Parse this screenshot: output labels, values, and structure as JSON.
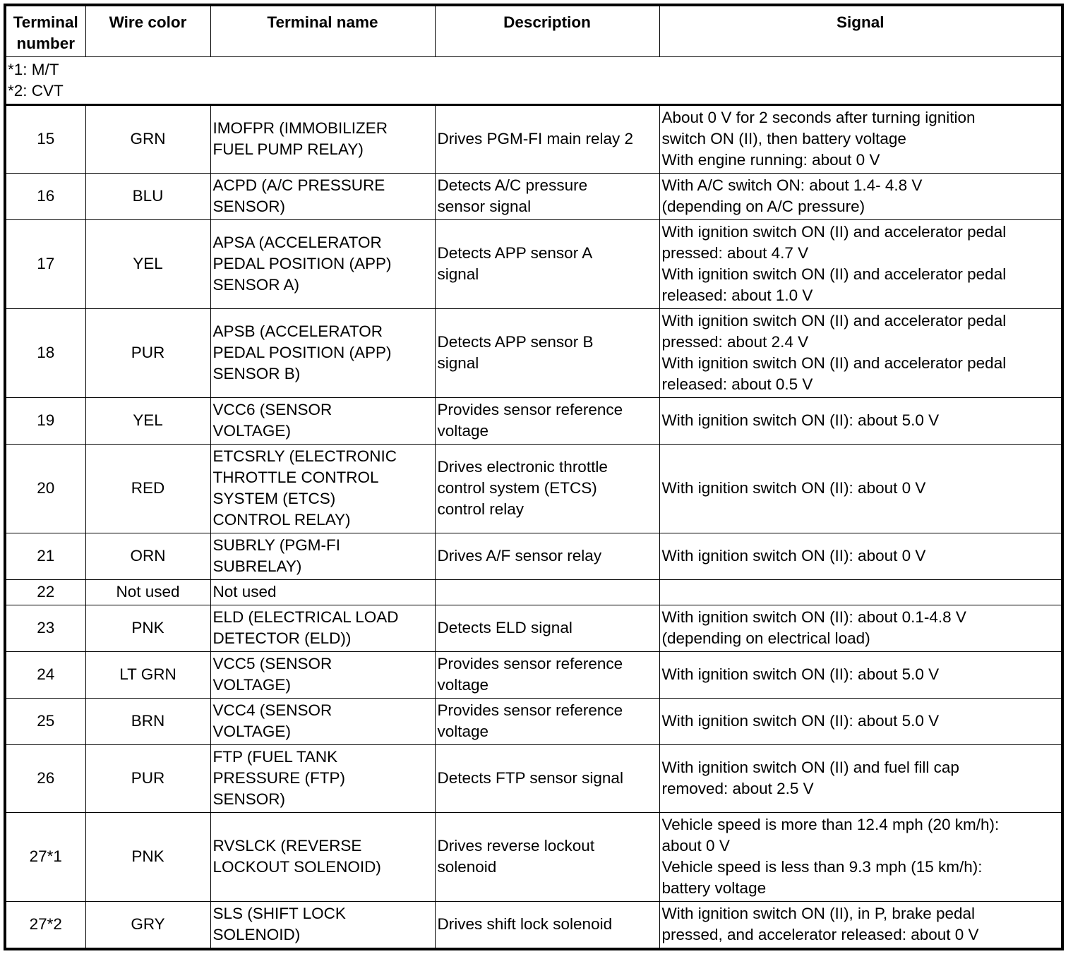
{
  "headers": [
    "Terminal\nnumber",
    "Wire color",
    "Terminal name",
    "Description",
    "Signal"
  ],
  "notes": "*1: M/T\n*2: CVT",
  "rows": [
    {
      "terminal": "15",
      "wire": "GRN",
      "name": "IMOFPR (IMMOBILIZER\nFUEL PUMP RELAY)",
      "description": "Drives PGM-FI main relay 2",
      "signal": "About 0 V for 2 seconds after turning ignition\nswitch ON (II), then battery voltage\nWith engine running: about 0 V"
    },
    {
      "terminal": "16",
      "wire": "BLU",
      "name": "ACPD (A/C PRESSURE\nSENSOR)",
      "description": "Detects A/C pressure\nsensor signal",
      "signal": "With A/C switch ON: about 1.4- 4.8 V\n(depending on A/C pressure)"
    },
    {
      "terminal": "17",
      "wire": "YEL",
      "name": "APSA (ACCELERATOR\nPEDAL POSITION (APP)\nSENSOR A)",
      "description": "Detects APP sensor A\nsignal",
      "signal": "With ignition switch ON (II) and accelerator pedal\npressed: about 4.7 V\nWith ignition switch ON (II) and accelerator pedal\nreleased: about 1.0 V"
    },
    {
      "terminal": "18",
      "wire": "PUR",
      "name": "APSB (ACCELERATOR\nPEDAL POSITION (APP)\nSENSOR B)",
      "description": "Detects APP sensor B\nsignal",
      "signal": "With ignition switch ON (II) and accelerator pedal\npressed: about 2.4 V\nWith ignition switch ON (II) and accelerator pedal\nreleased: about 0.5 V"
    },
    {
      "terminal": "19",
      "wire": "YEL",
      "name": "VCC6 (SENSOR\nVOLTAGE)",
      "description": "Provides sensor reference\nvoltage",
      "signal": "With ignition switch ON (II): about 5.0 V"
    },
    {
      "terminal": "20",
      "wire": "RED",
      "name": "ETCSRLY (ELECTRONIC\nTHROTTLE CONTROL\nSYSTEM (ETCS)\nCONTROL RELAY)",
      "description": "Drives electronic throttle\ncontrol system (ETCS)\ncontrol relay",
      "signal": "With ignition switch ON (II): about 0 V"
    },
    {
      "terminal": "21",
      "wire": "ORN",
      "name": "SUBRLY (PGM-FI\nSUBRELAY)",
      "description": "Drives A/F sensor relay",
      "signal": "With ignition switch ON (II): about 0 V"
    },
    {
      "terminal": "22",
      "wire": "Not used",
      "name": "Not used",
      "description": "",
      "signal": ""
    },
    {
      "terminal": "23",
      "wire": "PNK",
      "name": "ELD (ELECTRICAL LOAD\nDETECTOR (ELD))",
      "description": "Detects ELD signal",
      "signal": "With ignition switch ON (II): about 0.1-4.8 V\n(depending on electrical load)"
    },
    {
      "terminal": "24",
      "wire": "LT GRN",
      "name": "VCC5 (SENSOR\nVOLTAGE)",
      "description": "Provides sensor reference\nvoltage",
      "signal": "With ignition switch ON (II): about 5.0 V"
    },
    {
      "terminal": "25",
      "wire": "BRN",
      "name": "VCC4 (SENSOR\nVOLTAGE)",
      "description": "Provides sensor reference\nvoltage",
      "signal": "With ignition switch ON (II): about 5.0 V"
    },
    {
      "terminal": "26",
      "wire": "PUR",
      "name": "FTP (FUEL TANK\nPRESSURE (FTP)\nSENSOR)",
      "description": "Detects FTP sensor signal",
      "signal": "With ignition switch ON (II) and fuel fill cap\nremoved: about 2.5 V"
    },
    {
      "terminal": "27*1",
      "wire": "PNK",
      "name": "RVSLCK (REVERSE\nLOCKOUT SOLENOID)",
      "description": "Drives reverse lockout\nsolenoid",
      "signal": "Vehicle speed is more than 12.4 mph (20 km/h):\nabout 0 V\nVehicle speed is less than 9.3 mph (15 km/h):\nbattery voltage"
    },
    {
      "terminal": "27*2",
      "wire": "GRY",
      "name": "SLS (SHIFT LOCK\nSOLENOID)",
      "description": "Drives shift lock solenoid",
      "signal": "With ignition switch ON (II), in P, brake pedal\npressed, and accelerator released: about 0 V"
    }
  ]
}
